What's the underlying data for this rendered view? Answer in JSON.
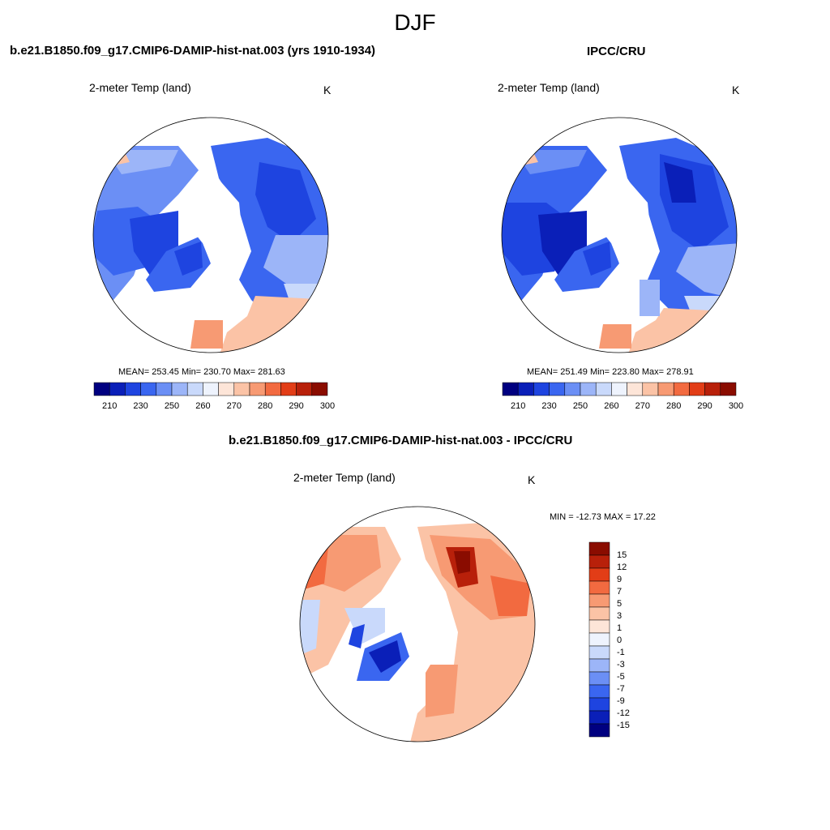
{
  "figure": {
    "title": "DJF"
  },
  "panels": {
    "model": {
      "title": "b.e21.B1850.f09_g17.CMIP6-DAMIP-hist-nat.003 (yrs 1910-1934)",
      "variable": "2-meter Temp (land)",
      "units": "K",
      "stats": "MEAN= 253.45  Min= 230.70  Max= 281.63",
      "colorbar_labels": [
        "210",
        "230",
        "250",
        "260",
        "270",
        "280",
        "290",
        "300"
      ]
    },
    "obs": {
      "title": "IPCC/CRU",
      "variable": "2-meter Temp (land)",
      "units": "K",
      "stats": "MEAN= 251.49  Min= 223.80  Max= 278.91",
      "colorbar_labels": [
        "210",
        "230",
        "250",
        "260",
        "270",
        "280",
        "290",
        "300"
      ]
    },
    "diff": {
      "title": "b.e21.B1850.f09_g17.CMIP6-DAMIP-hist-nat.003 - IPCC/CRU",
      "variable": "2-meter Temp (land)",
      "units": "K",
      "stats": "MIN = -12.73 MAX =  17.22",
      "colorbar_labels": [
        "15",
        "12",
        "9",
        "7",
        "5",
        "3",
        "1",
        "0",
        "-1",
        "-3",
        "-5",
        "-7",
        "-9",
        "-12",
        "-15"
      ]
    }
  },
  "colors": {
    "abs_scale": [
      "#000080",
      "#0a1fb8",
      "#1e44e0",
      "#3a66f0",
      "#6b8ff5",
      "#9cb5f8",
      "#c9d9fb",
      "#eef3fd",
      "#fde5d8",
      "#fbc3a6",
      "#f79a73",
      "#f26a40",
      "#e23d17",
      "#b8200a",
      "#8a0c00"
    ],
    "diff_scale": [
      "#8a0c00",
      "#b8200a",
      "#e23d17",
      "#f26a40",
      "#f79a73",
      "#fbc3a6",
      "#fde5d8",
      "#eef3fd",
      "#c9d9fb",
      "#9cb5f8",
      "#6b8ff5",
      "#3a66f0",
      "#1e44e0",
      "#0a1fb8",
      "#000080"
    ]
  }
}
